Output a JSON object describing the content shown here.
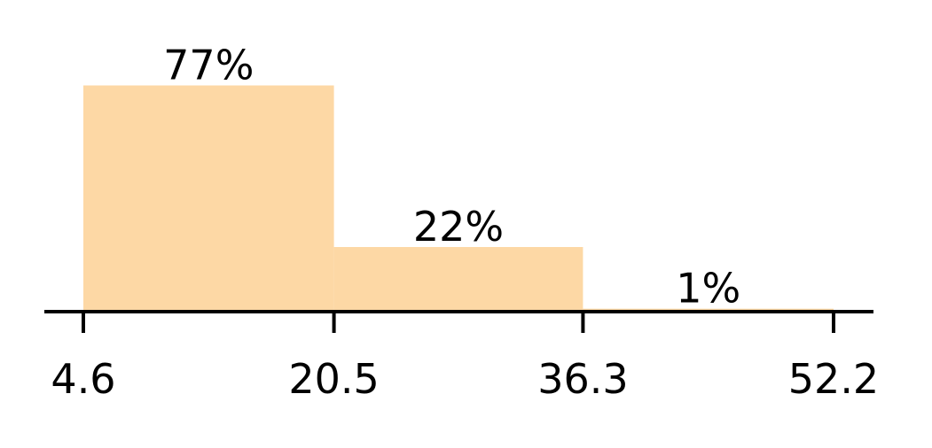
{
  "chart_data": {
    "type": "bar",
    "title": "",
    "xlabel": "",
    "ylabel": "",
    "bin_edges": [
      4.6,
      20.5,
      36.3,
      52.2
    ],
    "x_ticks": [
      "4.6",
      "20.5",
      "36.3",
      "52.2"
    ],
    "values": [
      77,
      22,
      1
    ],
    "labels": [
      "77%",
      "22%",
      "1%"
    ],
    "ylim": [
      0,
      100
    ],
    "grid": false,
    "legend": "none",
    "bar_color": "#fdd8a5",
    "axis_color": "#000000"
  }
}
